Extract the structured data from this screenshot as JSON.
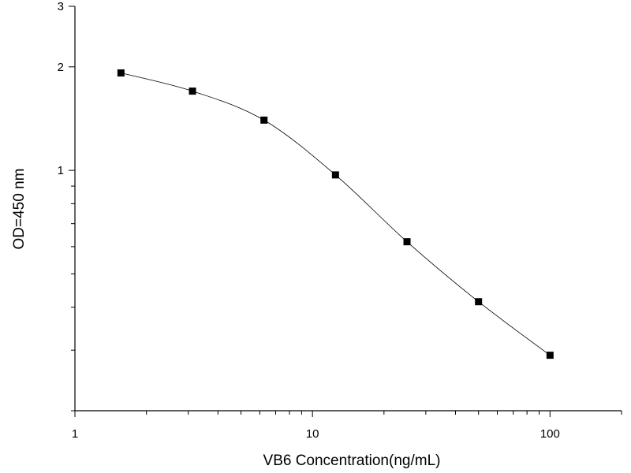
{
  "chart_data": {
    "type": "line",
    "title": "",
    "xlabel": "VB6 Concentration(ng/mL)",
    "ylabel": "OD=450 nm",
    "x_scale": "log",
    "y_scale": "log",
    "xlim": [
      1,
      200
    ],
    "ylim": [
      0.2,
      3
    ],
    "x_ticks": [
      {
        "value": 1,
        "label": "1"
      },
      {
        "value": 10,
        "label": "10"
      },
      {
        "value": 100,
        "label": "100"
      }
    ],
    "y_ticks": [
      {
        "value": 1,
        "label": "1"
      },
      {
        "value": 2,
        "label": "2"
      },
      {
        "value": 3,
        "label": "3"
      }
    ],
    "grid": false,
    "marker": "square",
    "line_color": "#000000",
    "marker_color": "#000000",
    "series": [
      {
        "x": [
          1.5625,
          3.125,
          6.25,
          12.5,
          25,
          50,
          100
        ],
        "y": [
          1.92,
          1.7,
          1.4,
          0.97,
          0.62,
          0.415,
          0.29
        ]
      }
    ]
  }
}
